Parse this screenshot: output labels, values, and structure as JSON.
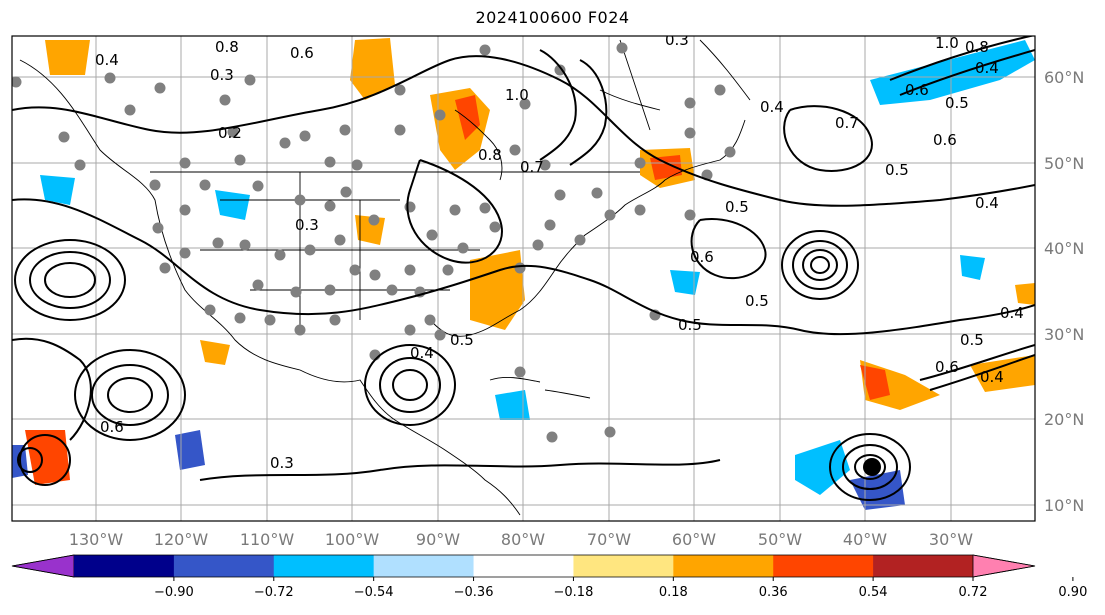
{
  "title": "2024100600 F024",
  "lon_labels": [
    "130°W",
    "120°W",
    "110°W",
    "100°W",
    "90°W",
    "80°W",
    "70°W",
    "60°W",
    "50°W",
    "40°W",
    "30°W"
  ],
  "lat_labels": [
    "60°N",
    "50°N",
    "40°N",
    "30°N",
    "20°N",
    "10°N"
  ],
  "contour_labels": [
    "0.8",
    "0.6",
    "0.3",
    "0.4",
    "0.2",
    "1.0",
    "0.7",
    "0.5",
    "0.3",
    "0.4",
    "0.6",
    "0.4",
    "0.5",
    "0.6",
    "0.3",
    "0.5",
    "0.8",
    "0.6",
    "0.3",
    "1.0",
    "0.8",
    "0.4",
    "0.5",
    "0.6",
    "0.7",
    "0.5",
    "0.4",
    "0.5",
    "0.4",
    "0.6",
    "0.4",
    "0.5"
  ],
  "colorbar": {
    "ticks": [
      "−0.90",
      "−0.72",
      "−0.54",
      "−0.36",
      "−0.18",
      "0.18",
      "0.36",
      "0.54",
      "0.72",
      "0.90"
    ],
    "colors": [
      "#9932cc",
      "#00008b",
      "#3556c8",
      "#00bfff",
      "#b0e0ff",
      "#ffffff",
      "#ffe680",
      "#ffa500",
      "#ff4500",
      "#b22222",
      "#ff80b0"
    ]
  }
}
